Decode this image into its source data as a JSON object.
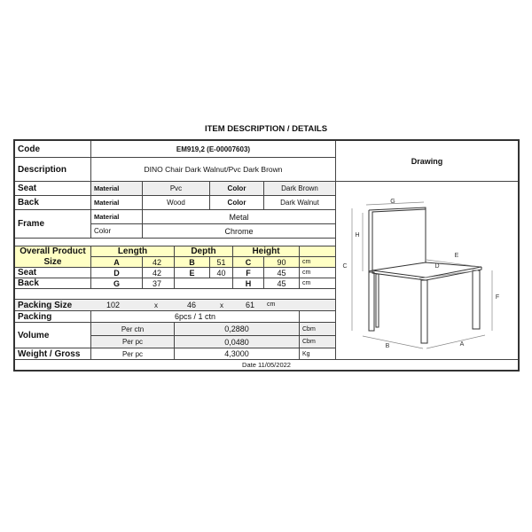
{
  "title": "ITEM DESCRIPTION / DETAILS",
  "code": {
    "label": "Code",
    "value": "EM919,2 (E-00007603)"
  },
  "description": {
    "label": "Description",
    "value": "DINO Chair Dark Walnut/Pvc Dark Brown"
  },
  "seat": {
    "label": "Seat",
    "material_label": "Material",
    "material": "Pvc",
    "color_label": "Color",
    "color": "Dark Brown"
  },
  "back": {
    "label": "Back",
    "material_label": "Material",
    "material": "Wood",
    "color_label": "Color",
    "color": "Dark Walnut"
  },
  "frame": {
    "label": "Frame",
    "material_label": "Material",
    "material": "Metal",
    "color_label": "Color",
    "color": "Chrome"
  },
  "size": {
    "label1": "Overall Product",
    "label2": "Size",
    "length": "Length",
    "depth": "Depth",
    "height": "Height",
    "overall": {
      "l_key": "A",
      "l_val": "42",
      "d_key": "B",
      "d_val": "51",
      "h_key": "C",
      "h_val": "90",
      "unit": "cm"
    },
    "seat": {
      "label": "Seat",
      "l_key": "D",
      "l_val": "42",
      "d_key": "E",
      "d_val": "40",
      "h_key": "F",
      "h_val": "45",
      "unit": "cm"
    },
    "back": {
      "label": "Back",
      "l_key": "G",
      "l_val": "37",
      "h_key": "H",
      "h_val": "45",
      "unit": "cm"
    }
  },
  "packing_size": {
    "label": "Packing Size",
    "l": "102",
    "x1": "x",
    "w": "46",
    "x2": "x",
    "h": "61",
    "unit": "cm"
  },
  "packing": {
    "label": "Packing",
    "value": "6pcs / 1 ctn"
  },
  "volume": {
    "label": "Volume",
    "ctn_label": "Per ctn",
    "ctn": "0,2880",
    "pc_label": "Per pc",
    "pc": "0,0480",
    "unit": "Cbm"
  },
  "weight": {
    "label": "Weight / Gross",
    "pc_label": "Per pc",
    "value": "4,3000",
    "unit": "Kg"
  },
  "date": "Date 11/05/2022",
  "drawing": {
    "label": "Drawing",
    "dims": {
      "A": "A",
      "B": "B",
      "C": "C",
      "D": "D",
      "E": "E",
      "F": "F",
      "G": "G",
      "H": "H"
    }
  }
}
